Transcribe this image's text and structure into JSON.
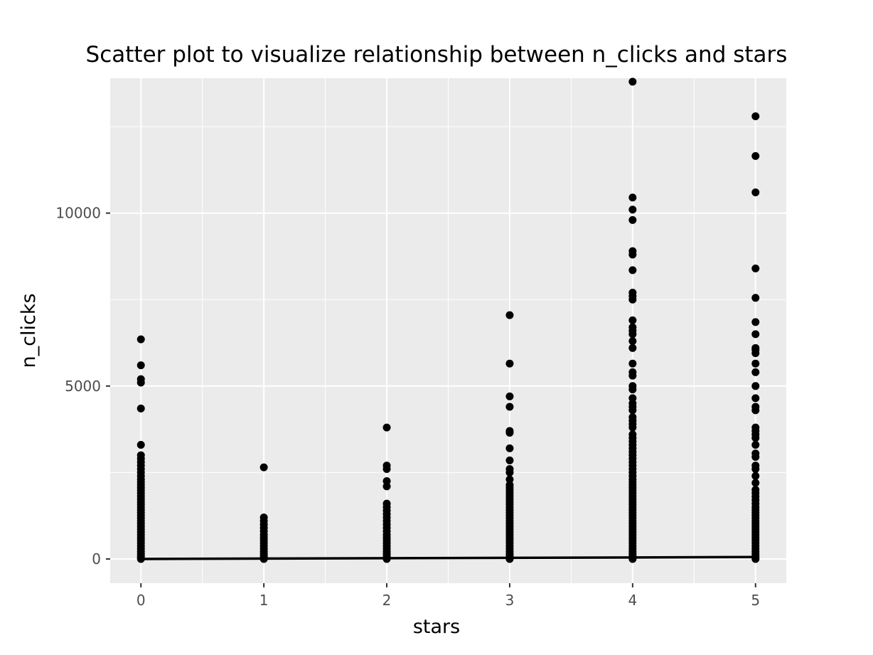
{
  "chart_data": {
    "type": "scatter",
    "title": "Scatter plot to visualize relationship between n_clicks and stars",
    "xlabel": "stars",
    "ylabel": "n_clicks",
    "xlim": [
      -0.25,
      5.25
    ],
    "ylim": [
      -700,
      13900
    ],
    "x_ticks": [
      0,
      1,
      2,
      3,
      4,
      5
    ],
    "y_ticks": [
      0,
      5000,
      10000
    ],
    "grid": true,
    "colors": {
      "panel": "#ebebeb",
      "grid": "#ffffff",
      "points": "#000000",
      "trend_line": "#000000"
    },
    "trend_line": {
      "x": [
        0,
        5
      ],
      "y": [
        0,
        55
      ]
    },
    "series": [
      {
        "x": 0,
        "values": [
          0,
          40,
          90,
          150,
          220,
          300,
          380,
          460,
          540,
          620,
          700,
          780,
          860,
          940,
          1020,
          1100,
          1180,
          1260,
          1340,
          1420,
          1500,
          1580,
          1660,
          1740,
          1820,
          1900,
          1980,
          2060,
          2140,
          2220,
          2300,
          2400,
          2500,
          2600,
          2700,
          2800,
          2900,
          3000,
          3300,
          4350,
          5100,
          5200,
          5600,
          6350
        ]
      },
      {
        "x": 1,
        "values": [
          0,
          40,
          90,
          150,
          220,
          300,
          380,
          460,
          540,
          620,
          700,
          800,
          900,
          1000,
          1100,
          1200,
          2650
        ]
      },
      {
        "x": 2,
        "values": [
          0,
          40,
          90,
          150,
          220,
          300,
          380,
          460,
          540,
          620,
          700,
          800,
          900,
          1000,
          1100,
          1200,
          1300,
          1400,
          1500,
          1600,
          2100,
          2250,
          2600,
          2700,
          3800
        ]
      },
      {
        "x": 3,
        "values": [
          0,
          40,
          90,
          150,
          220,
          300,
          380,
          460,
          540,
          620,
          700,
          780,
          860,
          940,
          1020,
          1100,
          1180,
          1260,
          1340,
          1420,
          1500,
          1580,
          1660,
          1740,
          1820,
          1900,
          1980,
          2060,
          2140,
          2300,
          2500,
          2600,
          2850,
          3200,
          3650,
          3700,
          4400,
          4700,
          5650,
          7050
        ]
      },
      {
        "x": 4,
        "values": [
          0,
          40,
          90,
          150,
          220,
          300,
          380,
          460,
          540,
          620,
          700,
          780,
          860,
          940,
          1020,
          1100,
          1180,
          1260,
          1340,
          1420,
          1500,
          1580,
          1660,
          1740,
          1820,
          1900,
          1980,
          2060,
          2140,
          2220,
          2300,
          2400,
          2500,
          2600,
          2700,
          2800,
          2900,
          3000,
          3100,
          3200,
          3300,
          3400,
          3500,
          3600,
          3800,
          3900,
          4000,
          4100,
          4300,
          4400,
          4500,
          4650,
          4900,
          5000,
          5300,
          5400,
          5650,
          6100,
          6300,
          6500,
          6600,
          6700,
          6900,
          7500,
          7600,
          7700,
          8350,
          8800,
          8900,
          9800,
          10100,
          10450,
          13800
        ]
      },
      {
        "x": 5,
        "values": [
          0,
          40,
          90,
          150,
          220,
          300,
          380,
          460,
          540,
          620,
          700,
          780,
          860,
          940,
          1020,
          1100,
          1180,
          1260,
          1340,
          1420,
          1500,
          1600,
          1700,
          1800,
          1900,
          2000,
          2200,
          2400,
          2600,
          2700,
          2950,
          3050,
          3300,
          3500,
          3600,
          3700,
          3800,
          4300,
          4400,
          4650,
          5000,
          5400,
          5650,
          5950,
          6050,
          6100,
          6500,
          6850,
          7550,
          8400,
          10600,
          11650,
          12800
        ]
      }
    ]
  }
}
